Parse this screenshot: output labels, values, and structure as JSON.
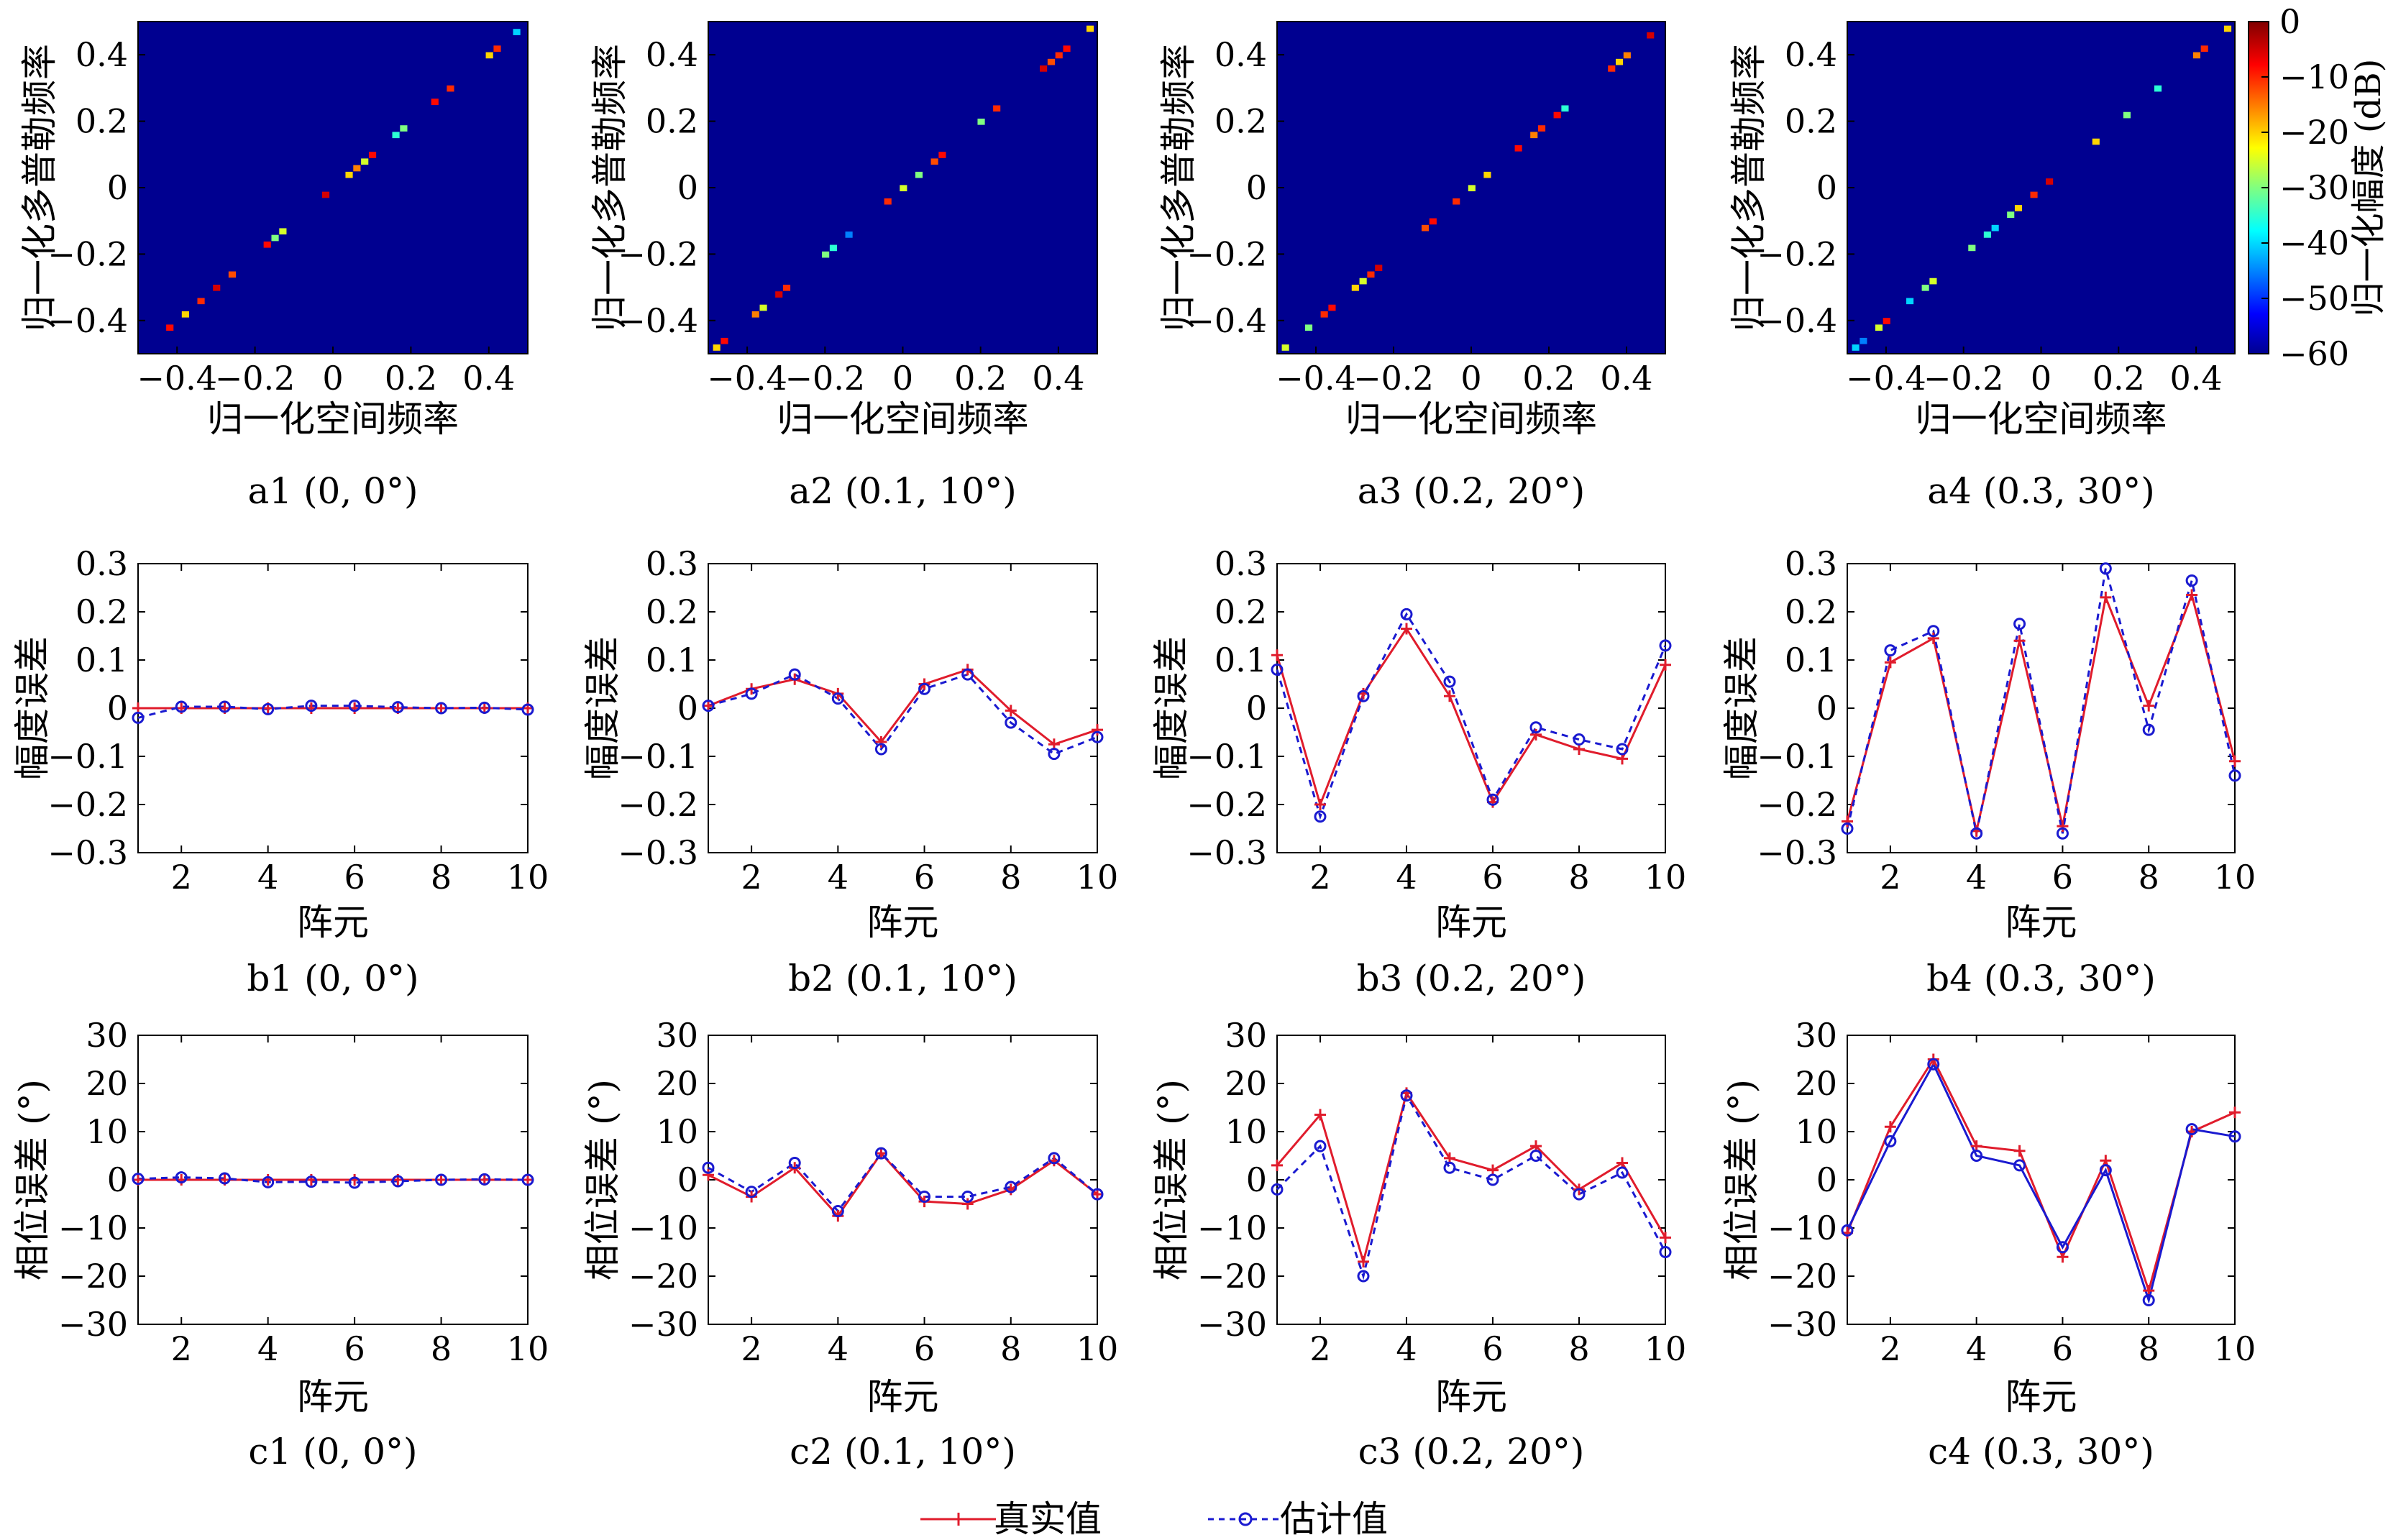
{
  "legend": {
    "true_label": "真实值",
    "est_label": "估计值",
    "true_color": "#e01c2c",
    "est_color": "#1a1ad0"
  },
  "colorbar": {
    "label": "归一化幅度 (dB)",
    "ticks": [
      "0",
      "−10",
      "−20",
      "−30",
      "−40",
      "−50",
      "−60"
    ],
    "range": [
      -60,
      0
    ]
  },
  "chart_data": [
    {
      "type": "heatmap",
      "panel": "a1",
      "caption": "a1 (0, 0°)",
      "xlabel": "归一化空间频率",
      "ylabel": "归一化多普勒频率",
      "xlim": [
        -0.5,
        0.5
      ],
      "ylim": [
        -0.5,
        0.5
      ],
      "xticks": [
        "−0.4",
        "−0.2",
        "0",
        "0.2",
        "0.4"
      ],
      "yticks": [
        "−0.4",
        "−0.2",
        "0",
        "0.2",
        "0.4"
      ],
      "background_db": -60,
      "points": [
        [
          -0.42,
          -0.42,
          -8
        ],
        [
          -0.38,
          -0.38,
          -20
        ],
        [
          -0.34,
          -0.34,
          -10
        ],
        [
          -0.3,
          -0.3,
          -5
        ],
        [
          -0.26,
          -0.26,
          -12
        ],
        [
          -0.17,
          -0.17,
          -8
        ],
        [
          -0.15,
          -0.15,
          -30
        ],
        [
          -0.13,
          -0.13,
          -25
        ],
        [
          -0.02,
          -0.02,
          -5
        ],
        [
          0.04,
          0.04,
          -20
        ],
        [
          0.06,
          0.06,
          -15
        ],
        [
          0.08,
          0.08,
          -25
        ],
        [
          0.1,
          0.1,
          -8
        ],
        [
          0.16,
          0.16,
          -35
        ],
        [
          0.18,
          0.18,
          -30
        ],
        [
          0.26,
          0.26,
          -8
        ],
        [
          0.3,
          0.3,
          -10
        ],
        [
          0.4,
          0.4,
          -20
        ],
        [
          0.42,
          0.42,
          -10
        ],
        [
          0.47,
          0.47,
          -40
        ]
      ]
    },
    {
      "type": "heatmap",
      "panel": "a2",
      "caption": "a2 (0.1, 10°)",
      "xlabel": "归一化空间频率",
      "ylabel": "归一化多普勒频率",
      "xlim": [
        -0.5,
        0.5
      ],
      "ylim": [
        -0.5,
        0.5
      ],
      "xticks": [
        "−0.4",
        "−0.2",
        "0",
        "0.2",
        "0.4"
      ],
      "yticks": [
        "−0.4",
        "−0.2",
        "0",
        "0.2",
        "0.4"
      ],
      "background_db": -60,
      "points": [
        [
          -0.48,
          -0.48,
          -20
        ],
        [
          -0.46,
          -0.46,
          -8
        ],
        [
          -0.38,
          -0.38,
          -15
        ],
        [
          -0.36,
          -0.36,
          -25
        ],
        [
          -0.32,
          -0.32,
          -5
        ],
        [
          -0.3,
          -0.3,
          -10
        ],
        [
          -0.2,
          -0.2,
          -30
        ],
        [
          -0.18,
          -0.18,
          -35
        ],
        [
          -0.14,
          -0.14,
          -45
        ],
        [
          -0.04,
          -0.04,
          -10
        ],
        [
          0,
          0,
          -25
        ],
        [
          0.04,
          0.04,
          -30
        ],
        [
          0.08,
          0.08,
          -12
        ],
        [
          0.1,
          0.1,
          -8
        ],
        [
          0.2,
          0.2,
          -30
        ],
        [
          0.24,
          0.24,
          -10
        ],
        [
          0.36,
          0.36,
          -5
        ],
        [
          0.38,
          0.38,
          -12
        ],
        [
          0.4,
          0.4,
          -10
        ],
        [
          0.42,
          0.42,
          -8
        ],
        [
          0.48,
          0.48,
          -20
        ]
      ]
    },
    {
      "type": "heatmap",
      "panel": "a3",
      "caption": "a3 (0.2, 20°)",
      "xlabel": "归一化空间频率",
      "ylabel": "归一化多普勒频率",
      "xlim": [
        -0.5,
        0.5
      ],
      "ylim": [
        -0.5,
        0.5
      ],
      "xticks": [
        "−0.4",
        "−0.2",
        "0",
        "0.2",
        "0.4"
      ],
      "yticks": [
        "−0.4",
        "−0.2",
        "0",
        "0.2",
        "0.4"
      ],
      "background_db": -60,
      "points": [
        [
          -0.48,
          -0.48,
          -25
        ],
        [
          -0.42,
          -0.42,
          -30
        ],
        [
          -0.38,
          -0.38,
          -10
        ],
        [
          -0.36,
          -0.36,
          -8
        ],
        [
          -0.3,
          -0.3,
          -20
        ],
        [
          -0.28,
          -0.28,
          -25
        ],
        [
          -0.26,
          -0.26,
          -10
        ],
        [
          -0.24,
          -0.24,
          -5
        ],
        [
          -0.12,
          -0.12,
          -12
        ],
        [
          -0.1,
          -0.1,
          -8
        ],
        [
          -0.04,
          -0.04,
          -10
        ],
        [
          0,
          0,
          -25
        ],
        [
          0.04,
          0.04,
          -20
        ],
        [
          0.12,
          0.12,
          -8
        ],
        [
          0.16,
          0.16,
          -15
        ],
        [
          0.18,
          0.18,
          -10
        ],
        [
          0.22,
          0.22,
          -8
        ],
        [
          0.24,
          0.24,
          -35
        ],
        [
          0.36,
          0.36,
          -10
        ],
        [
          0.38,
          0.38,
          -20
        ],
        [
          0.4,
          0.4,
          -15
        ],
        [
          0.46,
          0.46,
          -5
        ]
      ]
    },
    {
      "type": "heatmap",
      "panel": "a4",
      "caption": "a4 (0.3, 30°)",
      "xlabel": "归一化空间频率",
      "ylabel": "归一化多普勒频率",
      "xlim": [
        -0.5,
        0.5
      ],
      "ylim": [
        -0.5,
        0.5
      ],
      "xticks": [
        "−0.4",
        "−0.2",
        "0",
        "0.2",
        "0.4"
      ],
      "yticks": [
        "−0.4",
        "−0.2",
        "0",
        "0.2",
        "0.4"
      ],
      "background_db": -60,
      "points": [
        [
          -0.48,
          -0.48,
          -40
        ],
        [
          -0.46,
          -0.46,
          -45
        ],
        [
          -0.42,
          -0.42,
          -25
        ],
        [
          -0.4,
          -0.4,
          -8
        ],
        [
          -0.34,
          -0.34,
          -40
        ],
        [
          -0.3,
          -0.3,
          -30
        ],
        [
          -0.28,
          -0.28,
          -25
        ],
        [
          -0.18,
          -0.18,
          -30
        ],
        [
          -0.14,
          -0.14,
          -35
        ],
        [
          -0.12,
          -0.12,
          -40
        ],
        [
          -0.08,
          -0.08,
          -30
        ],
        [
          -0.06,
          -0.06,
          -20
        ],
        [
          -0.02,
          -0.02,
          -10
        ],
        [
          0.02,
          0.02,
          -5
        ],
        [
          0.14,
          0.14,
          -20
        ],
        [
          0.22,
          0.22,
          -30
        ],
        [
          0.3,
          0.3,
          -35
        ],
        [
          0.4,
          0.4,
          -15
        ],
        [
          0.42,
          0.42,
          -10
        ],
        [
          0.48,
          0.48,
          -20
        ]
      ]
    },
    {
      "type": "line",
      "panel": "b1",
      "caption": "b1 (0, 0°)",
      "xlabel": "阵元",
      "ylabel": "幅度误差",
      "xlim": [
        1,
        10
      ],
      "ylim": [
        -0.3,
        0.3
      ],
      "xticks": [
        2,
        4,
        6,
        8,
        10
      ],
      "yticks": [
        -0.3,
        -0.2,
        -0.1,
        0,
        0.1,
        0.2,
        0.3
      ],
      "x": [
        1,
        2,
        3,
        4,
        5,
        6,
        7,
        8,
        9,
        10
      ],
      "series": [
        {
          "name": "真实值",
          "values": [
            0,
            0,
            0,
            0,
            0,
            0,
            0,
            0,
            0,
            0
          ]
        },
        {
          "name": "估计值",
          "values": [
            -0.02,
            0.003,
            0.003,
            -0.002,
            0.005,
            0.005,
            0.002,
            0,
            0.001,
            -0.003
          ]
        }
      ]
    },
    {
      "type": "line",
      "panel": "b2",
      "caption": "b2 (0.1, 10°)",
      "xlabel": "阵元",
      "ylabel": "幅度误差",
      "xlim": [
        1,
        10
      ],
      "ylim": [
        -0.3,
        0.3
      ],
      "xticks": [
        2,
        4,
        6,
        8,
        10
      ],
      "yticks": [
        -0.3,
        -0.2,
        -0.1,
        0,
        0.1,
        0.2,
        0.3
      ],
      "x": [
        1,
        2,
        3,
        4,
        5,
        6,
        7,
        8,
        9,
        10
      ],
      "series": [
        {
          "name": "真实值",
          "values": [
            0.005,
            0.04,
            0.06,
            0.03,
            -0.07,
            0.05,
            0.08,
            -0.005,
            -0.075,
            -0.045
          ]
        },
        {
          "name": "估计值",
          "values": [
            0.005,
            0.03,
            0.07,
            0.02,
            -0.085,
            0.04,
            0.07,
            -0.03,
            -0.095,
            -0.06
          ]
        }
      ]
    },
    {
      "type": "line",
      "panel": "b3",
      "caption": "b3 (0.2, 20°)",
      "xlabel": "阵元",
      "ylabel": "幅度误差",
      "xlim": [
        1,
        10
      ],
      "ylim": [
        -0.3,
        0.3
      ],
      "xticks": [
        2,
        4,
        6,
        8,
        10
      ],
      "yticks": [
        -0.3,
        -0.2,
        -0.1,
        0,
        0.1,
        0.2,
        0.3
      ],
      "x": [
        1,
        2,
        3,
        4,
        5,
        6,
        7,
        8,
        9,
        10
      ],
      "series": [
        {
          "name": "真实值",
          "values": [
            0.11,
            -0.2,
            0.03,
            0.165,
            0.025,
            -0.195,
            -0.055,
            -0.085,
            -0.105,
            0.09
          ]
        },
        {
          "name": "估计值",
          "values": [
            0.08,
            -0.225,
            0.025,
            0.195,
            0.055,
            -0.19,
            -0.04,
            -0.065,
            -0.085,
            0.13
          ]
        }
      ]
    },
    {
      "type": "line",
      "panel": "b4",
      "caption": "b4 (0.3, 30°)",
      "xlabel": "阵元",
      "ylabel": "幅度误差",
      "xlim": [
        1,
        10
      ],
      "ylim": [
        -0.3,
        0.3
      ],
      "xticks": [
        2,
        4,
        6,
        8,
        10
      ],
      "yticks": [
        -0.3,
        -0.2,
        -0.1,
        0,
        0.1,
        0.2,
        0.3
      ],
      "x": [
        1,
        2,
        3,
        4,
        5,
        6,
        7,
        8,
        9,
        10
      ],
      "series": [
        {
          "name": "真实值",
          "values": [
            -0.235,
            0.095,
            0.145,
            -0.255,
            0.14,
            -0.245,
            0.23,
            0.005,
            0.235,
            -0.11
          ]
        },
        {
          "name": "估计值",
          "values": [
            -0.25,
            0.12,
            0.16,
            -0.26,
            0.175,
            -0.26,
            0.29,
            -0.045,
            0.265,
            -0.14
          ]
        }
      ]
    },
    {
      "type": "line",
      "panel": "c1",
      "caption": "c1 (0, 0°)",
      "xlabel": "阵元",
      "ylabel": "相位误差 (°)",
      "xlim": [
        1,
        10
      ],
      "ylim": [
        -30,
        30
      ],
      "xticks": [
        2,
        4,
        6,
        8,
        10
      ],
      "yticks": [
        -30,
        -20,
        -10,
        0,
        10,
        20,
        30
      ],
      "x": [
        1,
        2,
        3,
        4,
        5,
        6,
        7,
        8,
        9,
        10
      ],
      "series": [
        {
          "name": "真实值",
          "values": [
            0,
            0,
            0,
            0,
            0,
            0,
            0,
            0,
            0,
            0
          ]
        },
        {
          "name": "估计值",
          "values": [
            0.2,
            0.5,
            0.3,
            -0.5,
            -0.4,
            -0.6,
            -0.3,
            0,
            0.1,
            0
          ]
        }
      ]
    },
    {
      "type": "line",
      "panel": "c2",
      "caption": "c2 (0.1, 10°)",
      "xlabel": "阵元",
      "ylabel": "相位误差 (°)",
      "xlim": [
        1,
        10
      ],
      "ylim": [
        -30,
        30
      ],
      "xticks": [
        2,
        4,
        6,
        8,
        10
      ],
      "yticks": [
        -30,
        -20,
        -10,
        0,
        10,
        20,
        30
      ],
      "x": [
        1,
        2,
        3,
        4,
        5,
        6,
        7,
        8,
        9,
        10
      ],
      "series": [
        {
          "name": "真实值",
          "values": [
            1,
            -3.5,
            2.5,
            -7.5,
            5.5,
            -4.5,
            -5,
            -2,
            4,
            -3
          ]
        },
        {
          "name": "估计值",
          "values": [
            2.5,
            -2.5,
            3.5,
            -6.5,
            5.5,
            -3.5,
            -3.5,
            -1.5,
            4.5,
            -3
          ]
        }
      ]
    },
    {
      "type": "line",
      "panel": "c3",
      "caption": "c3 (0.2, 20°)",
      "xlabel": "阵元",
      "ylabel": "相位误差 (°)",
      "xlim": [
        1,
        10
      ],
      "ylim": [
        -30,
        30
      ],
      "xticks": [
        2,
        4,
        6,
        8,
        10
      ],
      "yticks": [
        -30,
        -20,
        -10,
        0,
        10,
        20,
        30
      ],
      "x": [
        1,
        2,
        3,
        4,
        5,
        6,
        7,
        8,
        9,
        10
      ],
      "series": [
        {
          "name": "真实值",
          "values": [
            3,
            13.5,
            -17,
            18,
            4.5,
            2,
            7,
            -2,
            3.5,
            -12
          ]
        },
        {
          "name": "估计值",
          "values": [
            -2,
            7,
            -20,
            17.5,
            2.5,
            0,
            5,
            -3,
            1.5,
            -15
          ]
        }
      ]
    },
    {
      "type": "line",
      "panel": "c4",
      "caption": "c4 (0.3, 30°)",
      "xlabel": "阵元",
      "ylabel": "相位误差 (°)",
      "xlim": [
        1,
        10
      ],
      "ylim": [
        -30,
        30
      ],
      "xticks": [
        2,
        4,
        6,
        8,
        10
      ],
      "yticks": [
        -30,
        -20,
        -10,
        0,
        10,
        20,
        30
      ],
      "x": [
        1,
        2,
        3,
        4,
        5,
        6,
        7,
        8,
        9,
        10
      ],
      "series": [
        {
          "name": "真实值",
          "values": [
            -11,
            11,
            25,
            7,
            6,
            -16,
            4,
            -23,
            10,
            14
          ]
        },
        {
          "name": "估计值",
          "values": [
            -10.5,
            8,
            24,
            5,
            3,
            -14,
            2,
            -25,
            10.5,
            9
          ]
        }
      ]
    }
  ]
}
